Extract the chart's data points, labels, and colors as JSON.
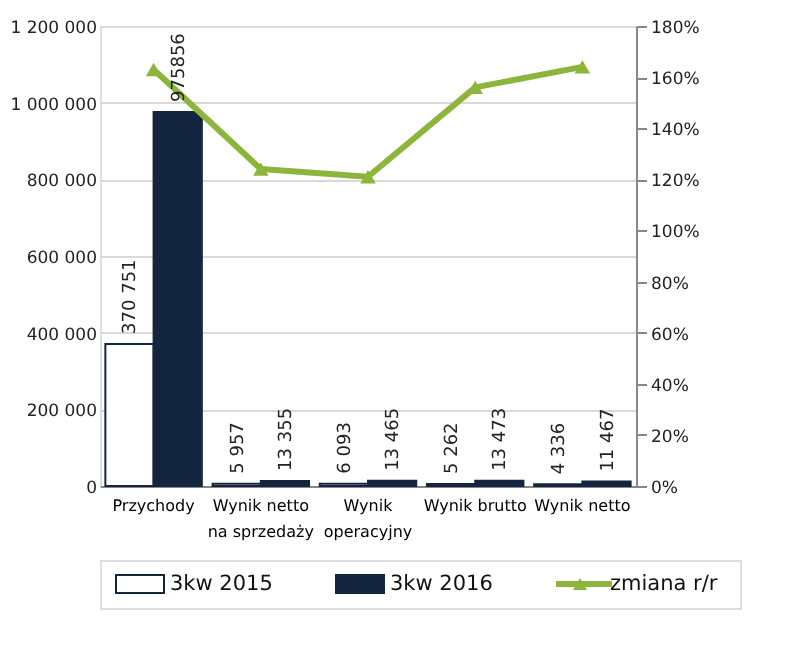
{
  "chart_data": {
    "type": "bar",
    "categories": [
      "Przychody",
      "Wynik netto na sprzedaży",
      "Wynik operacyjny",
      "Wynik brutto",
      "Wynik netto"
    ],
    "series": [
      {
        "name": "3kw 2015",
        "color": "#ffffff",
        "values": [
          370751,
          5957,
          6093,
          5262,
          4336
        ],
        "value_labels": [
          "370 751",
          "5 957",
          "6 093",
          "5 262",
          "4 336"
        ]
      },
      {
        "name": "3kw 2016",
        "color": "#14253f",
        "values": [
          975856,
          13355,
          13465,
          13473,
          11467
        ],
        "value_labels": [
          "975856",
          "13 355",
          "13 465",
          "13 473",
          "11 467"
        ]
      },
      {
        "name": "zmiana r/r",
        "type": "line",
        "axis": "y2",
        "color": "#8db53c",
        "marker": "triangle",
        "values": [
          163,
          124,
          121,
          156,
          164
        ]
      }
    ],
    "ylim": [
      0,
      1200000
    ],
    "yticks": [
      {
        "value": 0,
        "label": "0"
      },
      {
        "value": 200000,
        "label": "200 000"
      },
      {
        "value": 400000,
        "label": "400 000"
      },
      {
        "value": 600000,
        "label": "600 000"
      },
      {
        "value": 800000,
        "label": "800 000"
      },
      {
        "value": 1000000,
        "label": "1 000 000"
      },
      {
        "value": 1200000,
        "label": "1 200 000"
      }
    ],
    "y2lim": [
      0,
      180
    ],
    "y2ticks": [
      {
        "value": 0,
        "label": "0%"
      },
      {
        "value": 20,
        "label": "20%"
      },
      {
        "value": 40,
        "label": "40%"
      },
      {
        "value": 60,
        "label": "60%"
      },
      {
        "value": 80,
        "label": "80%"
      },
      {
        "value": 100,
        "label": "100%"
      },
      {
        "value": 120,
        "label": "120%"
      },
      {
        "value": 140,
        "label": "140%"
      },
      {
        "value": 160,
        "label": "160%"
      },
      {
        "value": 180,
        "label": "180%"
      }
    ],
    "grid": "y",
    "legend": "bottom"
  }
}
